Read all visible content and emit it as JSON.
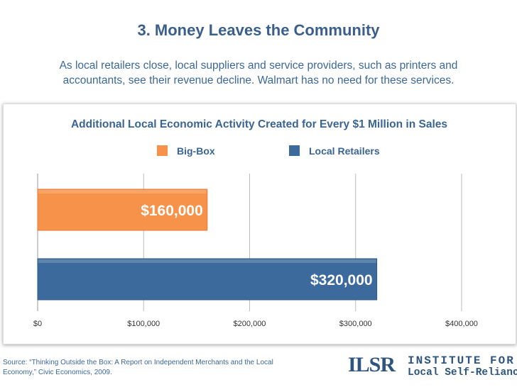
{
  "slide": {
    "title": "3. Money Leaves the Community",
    "subtitle": "As local retailers close, local suppliers and service providers, such as printers and accountants, see their revenue decline. Walmart has no need for these services.",
    "source": "Source: “Thinking Outside the Box: A Report on Independent Merchants and the Local Economy,” Civic Economics, 2009."
  },
  "logo": {
    "mark": "ILSR",
    "line1": "INSTITUTE FOR",
    "line2": "Local Self-Reliance",
    "color": "#2e5580"
  },
  "chart_data": {
    "type": "bar",
    "orientation": "horizontal",
    "title": "Additional Local Economic Activity Created for Every $1 Million in Sales",
    "categories": [
      "Big-Box",
      "Local Retailers"
    ],
    "values": [
      160000,
      320000
    ],
    "value_labels": [
      "$160,000",
      "$320,000"
    ],
    "colors": [
      "#f7924a",
      "#3c6a9c"
    ],
    "xlim": [
      0,
      400000
    ],
    "xticks": [
      0,
      100000,
      200000,
      300000,
      400000
    ],
    "xtick_labels": [
      "$0",
      "$100,000",
      "$200,000",
      "$300,000",
      "$400,000"
    ],
    "xlabel": "",
    "ylabel": "",
    "grid": true,
    "legend": [
      "Big-Box",
      "Local Retailers"
    ],
    "legend_position": "top"
  }
}
